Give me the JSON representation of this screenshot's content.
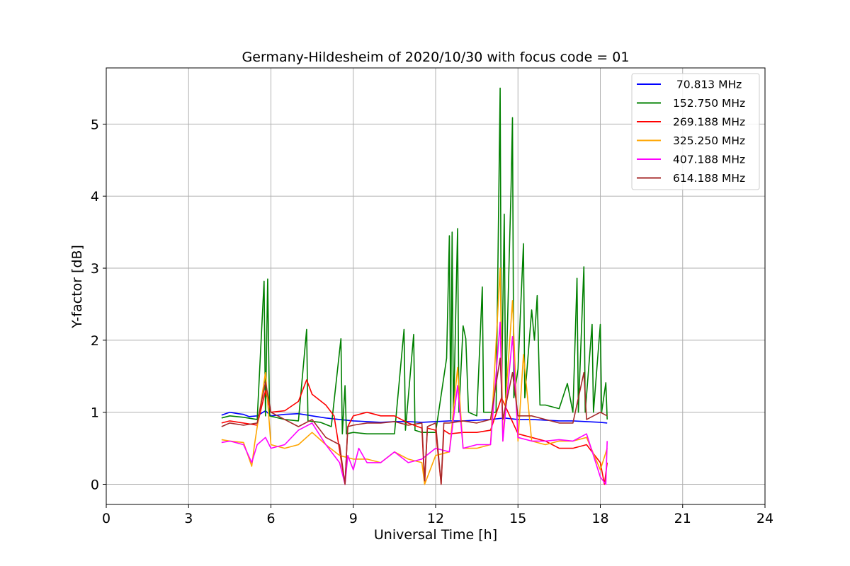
{
  "chart_data": {
    "type": "line",
    "title": "Germany-Hildesheim of 2020/10/30 with focus code = 01",
    "xlabel": "Universal Time [h]",
    "ylabel": "Y-factor [dB]",
    "xlim": [
      0,
      24
    ],
    "ylim": [
      -0.28,
      5.78
    ],
    "xticks": [
      0,
      3,
      6,
      9,
      12,
      15,
      18,
      21,
      24
    ],
    "yticks": [
      0,
      1,
      2,
      3,
      4,
      5
    ],
    "grid": true,
    "legend_position": "top-right",
    "series": [
      {
        "name": " 70.813 MHz",
        "color": "#0000ff",
        "points": [
          [
            4.2,
            0.96
          ],
          [
            4.5,
            1.0
          ],
          [
            4.8,
            0.98
          ],
          [
            5.0,
            0.97
          ],
          [
            5.2,
            0.94
          ],
          [
            5.5,
            0.95
          ],
          [
            5.8,
            1.02
          ],
          [
            6.0,
            0.95
          ],
          [
            6.5,
            0.97
          ],
          [
            7.0,
            0.98
          ],
          [
            7.5,
            0.95
          ],
          [
            8.0,
            0.92
          ],
          [
            8.5,
            0.9
          ],
          [
            9.0,
            0.88
          ],
          [
            9.5,
            0.87
          ],
          [
            10.0,
            0.86
          ],
          [
            10.5,
            0.87
          ],
          [
            11.0,
            0.87
          ],
          [
            11.5,
            0.86
          ],
          [
            12.0,
            0.87
          ],
          [
            12.5,
            0.88
          ],
          [
            13.0,
            0.88
          ],
          [
            13.5,
            0.89
          ],
          [
            14.0,
            0.9
          ],
          [
            14.5,
            0.92
          ],
          [
            15.0,
            0.9
          ],
          [
            15.5,
            0.9
          ],
          [
            16.0,
            0.89
          ],
          [
            16.5,
            0.88
          ],
          [
            17.0,
            0.88
          ],
          [
            17.5,
            0.87
          ],
          [
            18.0,
            0.86
          ],
          [
            18.25,
            0.85
          ]
        ]
      },
      {
        "name": "152.750 MHz",
        "color": "#008000",
        "points": [
          [
            4.2,
            0.92
          ],
          [
            4.5,
            0.95
          ],
          [
            5.0,
            0.93
          ],
          [
            5.5,
            0.9
          ],
          [
            5.75,
            2.82
          ],
          [
            5.8,
            0.95
          ],
          [
            5.88,
            2.85
          ],
          [
            5.95,
            0.95
          ],
          [
            6.5,
            0.9
          ],
          [
            7.0,
            0.88
          ],
          [
            7.3,
            2.15
          ],
          [
            7.35,
            0.88
          ],
          [
            7.8,
            0.86
          ],
          [
            8.2,
            0.8
          ],
          [
            8.55,
            2.02
          ],
          [
            8.6,
            0.7
          ],
          [
            8.7,
            1.37
          ],
          [
            8.75,
            0.7
          ],
          [
            9.0,
            0.72
          ],
          [
            9.5,
            0.7
          ],
          [
            10.0,
            0.7
          ],
          [
            10.5,
            0.7
          ],
          [
            10.85,
            2.15
          ],
          [
            10.9,
            0.75
          ],
          [
            11.2,
            2.08
          ],
          [
            11.25,
            0.75
          ],
          [
            11.5,
            0.72
          ],
          [
            12.0,
            0.72
          ],
          [
            12.4,
            1.75
          ],
          [
            12.5,
            3.45
          ],
          [
            12.55,
            0.9
          ],
          [
            12.6,
            3.5
          ],
          [
            12.65,
            0.9
          ],
          [
            12.8,
            3.55
          ],
          [
            12.85,
            1.0
          ],
          [
            13.0,
            2.2
          ],
          [
            13.1,
            2.02
          ],
          [
            13.2,
            1.0
          ],
          [
            13.5,
            0.95
          ],
          [
            13.7,
            2.74
          ],
          [
            13.75,
            1.0
          ],
          [
            14.0,
            1.0
          ],
          [
            14.2,
            1.0
          ],
          [
            14.35,
            5.5
          ],
          [
            14.4,
            1.2
          ],
          [
            14.5,
            3.75
          ],
          [
            14.55,
            1.2
          ],
          [
            14.65,
            2.7
          ],
          [
            14.75,
            4.15
          ],
          [
            14.8,
            5.09
          ],
          [
            14.85,
            1.2
          ],
          [
            15.0,
            1.6
          ],
          [
            15.2,
            3.34
          ],
          [
            15.25,
            1.2
          ],
          [
            15.5,
            2.42
          ],
          [
            15.6,
            2.0
          ],
          [
            15.7,
            2.62
          ],
          [
            15.8,
            1.1
          ],
          [
            16.0,
            1.1
          ],
          [
            16.5,
            1.05
          ],
          [
            16.8,
            1.4
          ],
          [
            17.0,
            1.0
          ],
          [
            17.15,
            2.86
          ],
          [
            17.2,
            1.0
          ],
          [
            17.4,
            3.02
          ],
          [
            17.45,
            1.0
          ],
          [
            17.7,
            2.22
          ],
          [
            17.75,
            1.0
          ],
          [
            18.0,
            2.22
          ],
          [
            18.05,
            1.0
          ],
          [
            18.2,
            1.41
          ],
          [
            18.25,
            0.9
          ]
        ]
      },
      {
        "name": "269.188 MHz",
        "color": "#ff0000",
        "points": [
          [
            4.2,
            0.85
          ],
          [
            4.5,
            0.88
          ],
          [
            5.0,
            0.85
          ],
          [
            5.5,
            0.82
          ],
          [
            5.8,
            1.3
          ],
          [
            6.0,
            1.0
          ],
          [
            6.5,
            1.02
          ],
          [
            7.0,
            1.15
          ],
          [
            7.3,
            1.45
          ],
          [
            7.5,
            1.25
          ],
          [
            8.0,
            1.1
          ],
          [
            8.3,
            0.95
          ],
          [
            8.7,
            0.0
          ],
          [
            8.8,
            0.8
          ],
          [
            9.0,
            0.95
          ],
          [
            9.5,
            1.0
          ],
          [
            10.0,
            0.95
          ],
          [
            10.5,
            0.95
          ],
          [
            11.0,
            0.85
          ],
          [
            11.5,
            0.78
          ],
          [
            11.6,
            0.0
          ],
          [
            11.7,
            0.78
          ],
          [
            12.0,
            0.75
          ],
          [
            12.2,
            0.0
          ],
          [
            12.3,
            0.75
          ],
          [
            12.5,
            0.7
          ],
          [
            13.0,
            0.72
          ],
          [
            13.5,
            0.72
          ],
          [
            14.0,
            0.75
          ],
          [
            14.4,
            1.2
          ],
          [
            15.0,
            0.7
          ],
          [
            15.5,
            0.65
          ],
          [
            16.0,
            0.6
          ],
          [
            16.5,
            0.5
          ],
          [
            17.0,
            0.5
          ],
          [
            17.5,
            0.55
          ],
          [
            18.0,
            0.3
          ],
          [
            18.15,
            0.0
          ],
          [
            18.25,
            0.3
          ]
        ]
      },
      {
        "name": "325.250 MHz",
        "color": "#ffa500",
        "points": [
          [
            4.2,
            0.62
          ],
          [
            4.5,
            0.6
          ],
          [
            5.0,
            0.58
          ],
          [
            5.3,
            0.25
          ],
          [
            5.4,
            0.55
          ],
          [
            5.8,
            1.55
          ],
          [
            6.0,
            0.55
          ],
          [
            6.5,
            0.5
          ],
          [
            7.0,
            0.55
          ],
          [
            7.5,
            0.72
          ],
          [
            8.0,
            0.55
          ],
          [
            8.5,
            0.4
          ],
          [
            9.0,
            0.35
          ],
          [
            9.5,
            0.35
          ],
          [
            10.0,
            0.3
          ],
          [
            10.5,
            0.45
          ],
          [
            11.0,
            0.35
          ],
          [
            11.5,
            0.3
          ],
          [
            11.6,
            0.0
          ],
          [
            12.0,
            0.4
          ],
          [
            12.5,
            0.45
          ],
          [
            12.8,
            1.62
          ],
          [
            13.0,
            0.5
          ],
          [
            13.5,
            0.5
          ],
          [
            14.0,
            0.55
          ],
          [
            14.35,
            3.0
          ],
          [
            14.45,
            0.6
          ],
          [
            14.8,
            2.55
          ],
          [
            15.0,
            0.6
          ],
          [
            15.2,
            1.8
          ],
          [
            15.5,
            0.6
          ],
          [
            16.0,
            0.55
          ],
          [
            16.5,
            0.6
          ],
          [
            17.0,
            0.6
          ],
          [
            17.5,
            0.65
          ],
          [
            18.0,
            0.2
          ],
          [
            18.25,
            0.5
          ]
        ]
      },
      {
        "name": "407.188 MHz",
        "color": "#ff00ff",
        "points": [
          [
            4.2,
            0.58
          ],
          [
            4.5,
            0.6
          ],
          [
            5.0,
            0.55
          ],
          [
            5.3,
            0.3
          ],
          [
            5.5,
            0.55
          ],
          [
            5.8,
            0.65
          ],
          [
            6.0,
            0.5
          ],
          [
            6.5,
            0.55
          ],
          [
            7.0,
            0.75
          ],
          [
            7.5,
            0.85
          ],
          [
            8.0,
            0.55
          ],
          [
            8.5,
            0.3
          ],
          [
            8.7,
            0.0
          ],
          [
            8.8,
            0.4
          ],
          [
            9.0,
            0.2
          ],
          [
            9.2,
            0.5
          ],
          [
            9.5,
            0.3
          ],
          [
            10.0,
            0.3
          ],
          [
            10.5,
            0.45
          ],
          [
            11.0,
            0.3
          ],
          [
            11.5,
            0.35
          ],
          [
            12.0,
            0.5
          ],
          [
            12.5,
            0.45
          ],
          [
            12.8,
            1.37
          ],
          [
            13.0,
            0.5
          ],
          [
            13.5,
            0.55
          ],
          [
            14.0,
            0.55
          ],
          [
            14.35,
            2.25
          ],
          [
            14.45,
            0.6
          ],
          [
            14.8,
            2.05
          ],
          [
            15.0,
            0.65
          ],
          [
            15.5,
            0.6
          ],
          [
            16.0,
            0.6
          ],
          [
            16.5,
            0.62
          ],
          [
            17.0,
            0.6
          ],
          [
            17.5,
            0.7
          ],
          [
            18.0,
            0.1
          ],
          [
            18.2,
            0.0
          ],
          [
            18.25,
            0.6
          ]
        ]
      },
      {
        "name": "614.188 MHz",
        "color": "#a52a2a",
        "points": [
          [
            4.2,
            0.8
          ],
          [
            4.5,
            0.85
          ],
          [
            5.0,
            0.82
          ],
          [
            5.5,
            0.85
          ],
          [
            5.8,
            1.42
          ],
          [
            6.0,
            1.0
          ],
          [
            6.5,
            0.9
          ],
          [
            7.0,
            0.8
          ],
          [
            7.5,
            0.9
          ],
          [
            8.0,
            0.65
          ],
          [
            8.5,
            0.55
          ],
          [
            8.7,
            0.0
          ],
          [
            8.8,
            0.8
          ],
          [
            9.0,
            0.82
          ],
          [
            9.5,
            0.85
          ],
          [
            10.0,
            0.85
          ],
          [
            10.5,
            0.87
          ],
          [
            11.0,
            0.82
          ],
          [
            11.5,
            0.85
          ],
          [
            11.6,
            0.05
          ],
          [
            11.7,
            0.8
          ],
          [
            12.0,
            0.85
          ],
          [
            12.2,
            0.0
          ],
          [
            12.3,
            0.85
          ],
          [
            12.5,
            0.85
          ],
          [
            13.0,
            0.88
          ],
          [
            13.5,
            0.85
          ],
          [
            14.0,
            0.9
          ],
          [
            14.35,
            1.75
          ],
          [
            14.45,
            0.9
          ],
          [
            14.8,
            1.55
          ],
          [
            15.0,
            0.95
          ],
          [
            15.5,
            0.95
          ],
          [
            16.0,
            0.9
          ],
          [
            16.5,
            0.85
          ],
          [
            17.0,
            0.85
          ],
          [
            17.4,
            1.55
          ],
          [
            17.5,
            0.9
          ],
          [
            18.0,
            1.0
          ],
          [
            18.25,
            0.95
          ]
        ]
      }
    ]
  }
}
